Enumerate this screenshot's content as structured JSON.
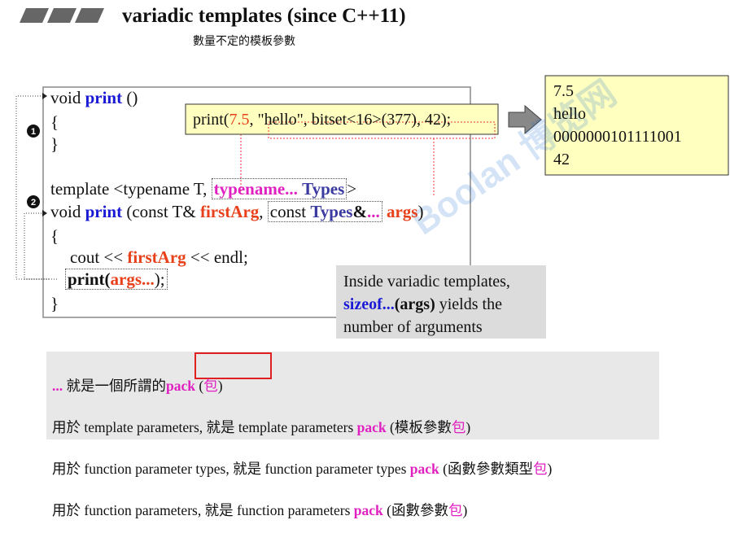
{
  "header": {
    "title": "variadic templates (since C++11)",
    "subtitle": "數量不定的模板參數"
  },
  "markers": [
    "1",
    "2"
  ],
  "code": {
    "lines": [
      [
        "void ",
        "print",
        " ()"
      ],
      [
        "{"
      ],
      [
        "}"
      ],
      [
        "template <typename T, ",
        "typename...",
        " ",
        "Types",
        ">"
      ],
      [
        "void ",
        "print",
        " (const T& ",
        "firstArg",
        ", ",
        "const ",
        "Types",
        "&",
        "...",
        " ",
        "args",
        ")"
      ],
      [
        "{"
      ],
      [
        "cout << ",
        "firstArg",
        " << endl;"
      ],
      [
        "print(",
        "args...",
        ");"
      ],
      [
        "}"
      ]
    ]
  },
  "call": [
    "print(",
    "7.5",
    ", \"hello\", bitset<16>(377), 42);"
  ],
  "output": [
    "7.5",
    "hello",
    "0000000101111001",
    "42"
  ],
  "note": {
    "lines": [
      [
        "Inside variadic templates,"
      ],
      [
        "sizeof...",
        "(args)",
        " yields the"
      ],
      [
        "number of arguments"
      ]
    ]
  },
  "watermark": "Boolan 博览网",
  "summary": {
    "lines": [
      [
        "...",
        " 就是一個所謂的",
        "pack",
        " (",
        "包",
        ")"
      ],
      [
        "用於 template parameters, 就是 template parameters ",
        "pack",
        " (模板參數",
        "包",
        ")"
      ],
      [
        "用於 function parameter types, 就是 function parameter types ",
        "pack",
        " (函數參數類型",
        "包",
        ")"
      ],
      [
        "用於 function parameters, 就是 function parameters ",
        "pack",
        " (函數參數",
        "包",
        ")"
      ]
    ]
  }
}
